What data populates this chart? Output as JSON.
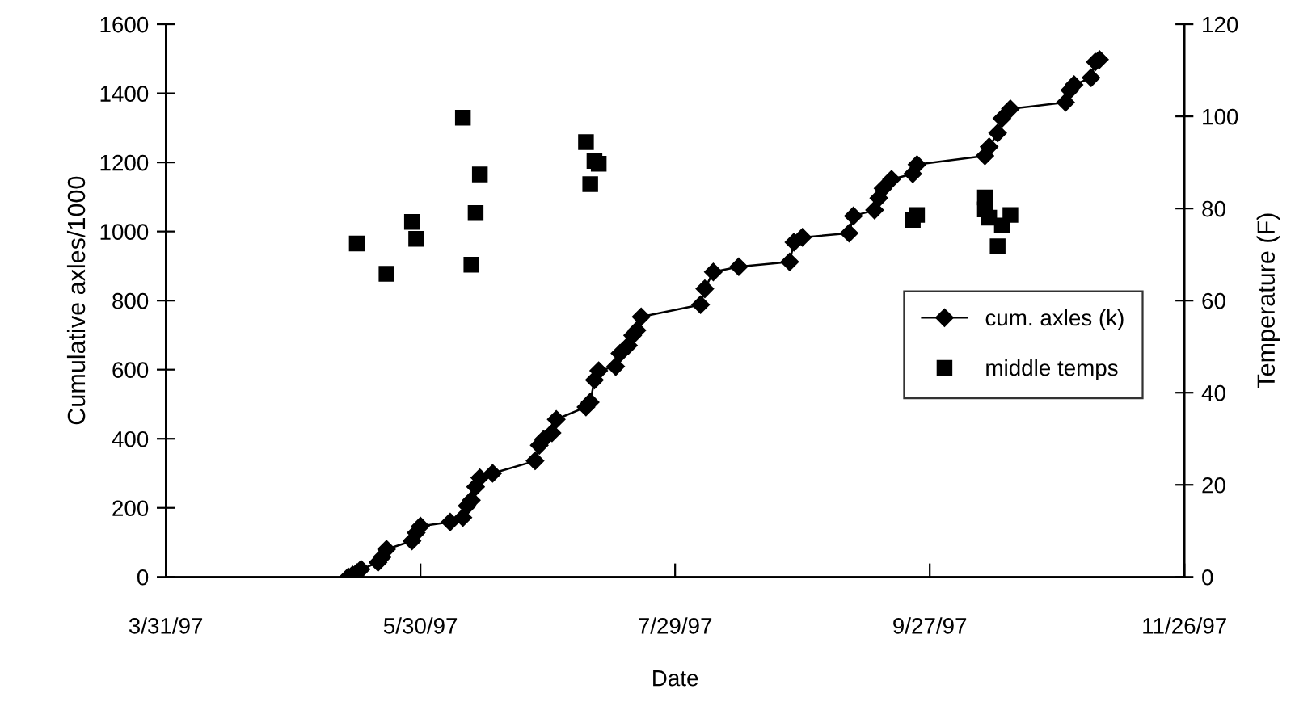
{
  "chart_data": {
    "type": "line",
    "xlabel": "Date",
    "ylabel": "Cumulative axles/1000",
    "y2label": "Temperature (F)",
    "xlim": [
      "1997-03-31",
      "1997-11-26"
    ],
    "xticks": [
      {
        "value": "1997-03-31",
        "label": "3/31/97"
      },
      {
        "value": "1997-05-30",
        "label": "5/30/97"
      },
      {
        "value": "1997-07-29",
        "label": "7/29/97"
      },
      {
        "value": "1997-09-27",
        "label": "9/27/97"
      },
      {
        "value": "1997-11-26",
        "label": "11/26/97"
      }
    ],
    "ylim": [
      0,
      1600
    ],
    "yticks": [
      0,
      200,
      400,
      600,
      800,
      1000,
      1200,
      1400,
      1600
    ],
    "y2lim": [
      0,
      120
    ],
    "y2ticks": [
      0,
      20,
      40,
      60,
      80,
      100,
      120
    ],
    "grid": false,
    "legend": "right",
    "line_style": "solid",
    "series": [
      {
        "name": "cum. axles (k)",
        "marker": "diamond",
        "color": "#000000",
        "x": [
          "1997-05-13",
          "1997-05-14",
          "1997-05-15",
          "1997-05-16",
          "1997-05-20",
          "1997-05-21",
          "1997-05-22",
          "1997-05-28",
          "1997-05-29",
          "1997-05-30",
          "1997-06-06",
          "1997-06-09",
          "1997-06-10",
          "1997-06-11",
          "1997-06-12",
          "1997-06-13",
          "1997-06-16",
          "1997-06-26",
          "1997-06-27",
          "1997-06-28",
          "1997-06-30",
          "1997-07-01",
          "1997-07-08",
          "1997-07-09",
          "1997-07-10",
          "1997-07-11",
          "1997-07-15",
          "1997-07-16",
          "1997-07-18",
          "1997-07-19",
          "1997-07-20",
          "1997-07-21",
          "1997-08-04",
          "1997-08-05",
          "1997-08-07",
          "1997-08-13",
          "1997-08-25",
          "1997-08-26",
          "1997-08-28",
          "1997-09-08",
          "1997-09-09",
          "1997-09-14",
          "1997-09-15",
          "1997-09-16",
          "1997-09-18",
          "1997-09-23",
          "1997-09-24",
          "1997-10-10",
          "1997-10-11",
          "1997-10-13",
          "1997-10-14",
          "1997-10-16",
          "1997-10-29",
          "1997-10-30",
          "1997-10-31",
          "1997-11-04",
          "1997-11-05",
          "1997-11-06"
        ],
        "values": [
          0,
          6,
          12,
          22,
          42,
          58,
          80,
          104,
          128,
          147,
          159,
          172,
          206,
          222,
          261,
          287,
          300,
          336,
          381,
          398,
          417,
          456,
          492,
          506,
          570,
          597,
          609,
          647,
          670,
          699,
          714,
          753,
          788,
          834,
          883,
          898,
          912,
          969,
          983,
          995,
          1045,
          1062,
          1097,
          1125,
          1151,
          1167,
          1194,
          1219,
          1245,
          1285,
          1327,
          1355,
          1374,
          1409,
          1425,
          1445,
          1491,
          1498
        ]
      },
      {
        "name": "middle temps",
        "type": "scatter",
        "marker": "square",
        "color": "#000000",
        "axis": "y2",
        "x": [
          "1997-05-15",
          "1997-05-22",
          "1997-05-28",
          "1997-05-29",
          "1997-06-09",
          "1997-06-11",
          "1997-06-12",
          "1997-06-13",
          "1997-07-08",
          "1997-07-09",
          "1997-07-10",
          "1997-07-11",
          "1997-09-23",
          "1997-09-24",
          "1997-10-10",
          "1997-10-10",
          "1997-10-11",
          "1997-10-13",
          "1997-10-14",
          "1997-10-16"
        ],
        "values": [
          72.4,
          65.8,
          77.1,
          73.4,
          99.7,
          67.8,
          79.0,
          87.4,
          94.4,
          85.3,
          90.3,
          89.7,
          77.5,
          78.6,
          82.4,
          79.8,
          78.0,
          71.8,
          76.3,
          78.6
        ]
      }
    ]
  }
}
